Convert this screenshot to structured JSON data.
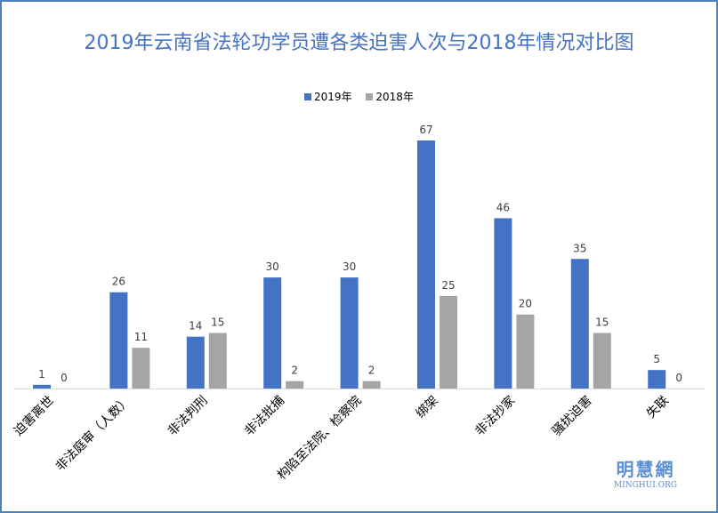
{
  "chart_data": {
    "type": "bar",
    "title": "2019年云南省法轮功学员遭各类迫害人次与2018年情况对比图",
    "categories": [
      "迫害离世",
      "非法庭审（人数）",
      "非法判刑",
      "非法批捕",
      "构陷至法院、检察院",
      "绑架",
      "非法抄家",
      "骚扰迫害",
      "失联"
    ],
    "series": [
      {
        "name": "2019年",
        "color": "#4472c4",
        "values": [
          1,
          26,
          14,
          30,
          30,
          67,
          46,
          35,
          5
        ]
      },
      {
        "name": "2018年",
        "color": "#a5a5a5",
        "values": [
          0,
          11,
          15,
          2,
          2,
          25,
          20,
          15,
          0
        ]
      }
    ],
    "ylim": [
      0,
      67
    ],
    "legend": "top",
    "grid": false
  },
  "logo": {
    "cn": "明慧網",
    "en": "MINGHUI.ORG"
  }
}
